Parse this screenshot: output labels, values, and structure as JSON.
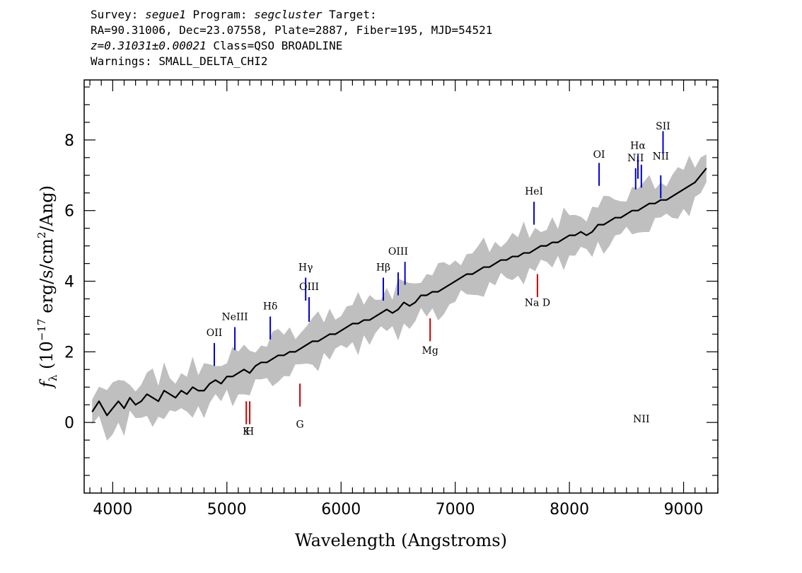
{
  "header": {
    "line1": {
      "survey_label": "Survey: ",
      "survey": "segue1",
      "program_label": " Program: ",
      "program": "segcluster",
      "target_label": " Target:"
    },
    "line2": "RA=90.31006, Dec=23.07558, Plate=2887, Fiber=195, MJD=54521",
    "line3": {
      "z": "z=0.31031±0.00021",
      "class": " Class=QSO BROADLINE"
    },
    "line4": "Warnings: SMALL_DELTA_CHI2"
  },
  "chart_data": {
    "type": "line",
    "xlabel": "Wavelength (Angstroms)",
    "ylabel": "fλ (10⁻¹⁷ erg/s/cm²/Ang)",
    "ylabel_parts": {
      "f": "f",
      "lambda": "λ",
      "open": " (10",
      "exp": "−17",
      "unit1": " erg/s/cm",
      "sq": "2",
      "unit2": "/Ang)"
    },
    "xlim": [
      3750,
      9300
    ],
    "ylim": [
      -2,
      9.7
    ],
    "xticks": [
      4000,
      5000,
      6000,
      7000,
      8000,
      9000
    ],
    "xtick_labels": [
      "4000",
      "5000",
      "6000",
      "7000",
      "8000",
      "9000"
    ],
    "yticks": [
      0,
      2,
      4,
      6,
      8
    ],
    "ytick_labels": [
      "0",
      "2",
      "4",
      "6",
      "8"
    ],
    "colors": {
      "spectrum": "#000000",
      "error_band": "#bfbfbf",
      "emission": "#0000cc",
      "absorption": "#cc0000"
    },
    "series": [
      {
        "role": "smoothed flux",
        "x": [
          3820,
          3880,
          3950,
          4000,
          4050,
          4100,
          4150,
          4200,
          4250,
          4300,
          4350,
          4400,
          4450,
          4500,
          4550,
          4600,
          4650,
          4700,
          4750,
          4800,
          4850,
          4900,
          4950,
          5000,
          5050,
          5100,
          5150,
          5200,
          5250,
          5300,
          5350,
          5400,
          5450,
          5500,
          5550,
          5600,
          5650,
          5700,
          5750,
          5800,
          5850,
          5900,
          5950,
          6000,
          6050,
          6100,
          6150,
          6200,
          6250,
          6300,
          6350,
          6400,
          6450,
          6500,
          6550,
          6600,
          6650,
          6700,
          6750,
          6800,
          6850,
          6900,
          6950,
          7000,
          7050,
          7100,
          7150,
          7200,
          7250,
          7300,
          7350,
          7400,
          7450,
          7500,
          7550,
          7600,
          7650,
          7700,
          7750,
          7800,
          7850,
          7900,
          7950,
          8000,
          8050,
          8100,
          8150,
          8200,
          8250,
          8300,
          8350,
          8400,
          8450,
          8500,
          8550,
          8600,
          8650,
          8700,
          8750,
          8800,
          8850,
          8900,
          8950,
          9000,
          9050,
          9100,
          9150,
          9200
        ],
        "y": [
          0.3,
          0.6,
          0.2,
          0.4,
          0.6,
          0.4,
          0.7,
          0.5,
          0.6,
          0.8,
          0.7,
          0.6,
          0.9,
          0.8,
          0.7,
          0.9,
          0.8,
          1.0,
          0.9,
          0.9,
          1.1,
          1.2,
          1.1,
          1.3,
          1.3,
          1.4,
          1.5,
          1.4,
          1.6,
          1.7,
          1.7,
          1.8,
          1.9,
          1.9,
          2.0,
          2.0,
          2.1,
          2.2,
          2.3,
          2.3,
          2.4,
          2.5,
          2.5,
          2.6,
          2.7,
          2.8,
          2.8,
          2.9,
          2.9,
          3.0,
          3.1,
          3.2,
          3.1,
          3.2,
          3.4,
          3.3,
          3.4,
          3.6,
          3.6,
          3.7,
          3.7,
          3.8,
          3.9,
          4.0,
          4.1,
          4.2,
          4.2,
          4.3,
          4.4,
          4.4,
          4.5,
          4.6,
          4.6,
          4.7,
          4.7,
          4.8,
          4.8,
          4.9,
          5.0,
          5.0,
          5.1,
          5.1,
          5.2,
          5.3,
          5.3,
          5.4,
          5.3,
          5.4,
          5.6,
          5.6,
          5.7,
          5.8,
          5.8,
          5.9,
          6.0,
          6.0,
          6.1,
          6.2,
          6.2,
          6.3,
          6.3,
          6.4,
          6.5,
          6.6,
          6.7,
          6.8,
          7.0,
          7.2
        ]
      }
    ],
    "lines": [
      {
        "label": "OII",
        "x": 4890,
        "kind": "emission",
        "label_y": 2.45,
        "y_top": 2.25,
        "y_bot": 1.6
      },
      {
        "label": "NeIII",
        "x": 5070,
        "kind": "emission",
        "label_y": 2.9,
        "y_top": 2.7,
        "y_bot": 2.05
      },
      {
        "label": "Hδ",
        "x": 5380,
        "kind": "emission",
        "label_y": 3.2,
        "y_top": 3.0,
        "y_bot": 2.35
      },
      {
        "label": "Hγ",
        "x": 5690,
        "kind": "emission",
        "label_y": 4.3,
        "y_top": 4.1,
        "y_bot": 3.45
      },
      {
        "label": "OIII",
        "x": 5720,
        "kind": "emission",
        "label_y": 3.75,
        "y_top": 3.55,
        "y_bot": 2.85
      },
      {
        "label": "Hβ",
        "x": 6370,
        "kind": "emission",
        "label_y": 4.3,
        "y_top": 4.1,
        "y_bot": 3.45
      },
      {
        "label": "OIII",
        "x": 6500,
        "kind": "emission",
        "label_y": 4.75,
        "y_top": 4.25,
        "y_bot": 3.6
      },
      {
        "label": "",
        "x": 6560,
        "kind": "emission",
        "label_y": 0,
        "y_top": 4.55,
        "y_bot": 3.9
      },
      {
        "label": "HeI",
        "x": 7690,
        "kind": "emission",
        "label_y": 6.45,
        "y_top": 6.25,
        "y_bot": 5.6
      },
      {
        "label": "OI",
        "x": 8260,
        "kind": "emission",
        "label_y": 7.5,
        "y_top": 7.35,
        "y_bot": 6.7
      },
      {
        "label": "NII",
        "x": 8580,
        "kind": "emission",
        "label_y": 7.4,
        "y_top": 7.2,
        "y_bot": 6.6
      },
      {
        "label": "Hα",
        "x": 8600,
        "kind": "emission",
        "label_y": 7.75,
        "y_top": 7.55,
        "y_bot": 6.9
      },
      {
        "label": "NII",
        "x": 8630,
        "kind": "emission",
        "label_y": 0,
        "y_top": 7.3,
        "y_bot": 6.65
      },
      {
        "label": "NII",
        "x": 8800,
        "kind": "emission",
        "label_y": 7.45,
        "y_top": 7.0,
        "y_bot": 6.35
      },
      {
        "label": "SII",
        "x": 8820,
        "kind": "emission",
        "label_y": 8.3,
        "y_top": 8.25,
        "y_bot": 7.6
      },
      {
        "label": "K",
        "x": 5170,
        "kind": "absorption",
        "label_y": -0.35,
        "y_top": 0.6,
        "y_bot": -0.05
      },
      {
        "label": "H",
        "x": 5200,
        "kind": "absorption",
        "label_y": -0.35,
        "y_top": 0.6,
        "y_bot": -0.05
      },
      {
        "label": "G",
        "x": 5640,
        "kind": "absorption",
        "label_y": -0.15,
        "y_top": 1.1,
        "y_bot": 0.45
      },
      {
        "label": "Mg",
        "x": 6780,
        "kind": "absorption",
        "label_y": 1.95,
        "y_top": 2.95,
        "y_bot": 2.3
      },
      {
        "label": "Na D",
        "x": 7720,
        "kind": "absorption",
        "label_y": 3.3,
        "y_top": 4.2,
        "y_bot": 3.55
      }
    ]
  }
}
